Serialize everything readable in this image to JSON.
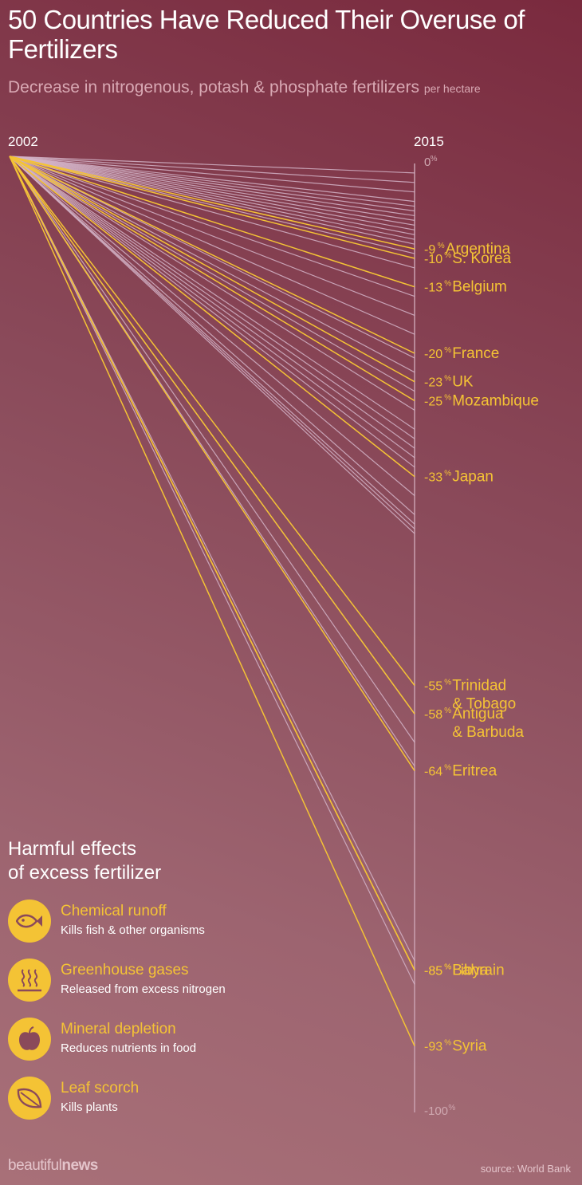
{
  "header": {
    "title": "50 Countries Have Reduced Their Overuse of Fertilizers",
    "subtitle": "Decrease in nitrogenous, potash & phosphate fertilizers",
    "subtitle_small": "per hectare"
  },
  "colors": {
    "highlight": "#f4c335",
    "other_lines": "#d4b4c8",
    "axis": "#c9a0b0",
    "background_top": "#7a2a3e",
    "background_bottom": "#a87078"
  },
  "chart_data": {
    "type": "line",
    "title": "50 Countries Have Reduced Their Overuse of Fertilizers",
    "x": [
      "2002",
      "2015"
    ],
    "y_axis_ticks": [
      {
        "value": 0,
        "label": "0",
        "unit": "%"
      },
      {
        "value": -100,
        "label": "-100",
        "unit": "%"
      }
    ],
    "ylim": [
      -100,
      0
    ],
    "labeled_series": [
      {
        "name": "Argentina",
        "change": -9,
        "label": "-9"
      },
      {
        "name": "S. Korea",
        "change": -10,
        "label": "-10"
      },
      {
        "name": "Belgium",
        "change": -13,
        "label": "-13"
      },
      {
        "name": "France",
        "change": -20,
        "label": "-20"
      },
      {
        "name": "UK",
        "change": -23,
        "label": "-23"
      },
      {
        "name": "Mozambique",
        "change": -25,
        "label": "-25"
      },
      {
        "name": "Japan",
        "change": -33,
        "label": "-33"
      },
      {
        "name": "Trinidad & Tobago",
        "name_lines": [
          "Trinidad",
          "& Tobago"
        ],
        "change": -55,
        "label": "-55"
      },
      {
        "name": "Antigua & Barbuda",
        "name_lines": [
          "Antigua",
          "& Barbuda"
        ],
        "change": -58,
        "label": "-58"
      },
      {
        "name": "Eritrea",
        "change": -64,
        "label": "-64"
      },
      {
        "name": "Libya",
        "change": -85,
        "label": "-85"
      },
      {
        "name": "Bahrain",
        "change": -85,
        "label": "-85"
      },
      {
        "name": "Syria",
        "change": -93,
        "label": "-93"
      }
    ],
    "unlabeled_values": [
      -1,
      -2,
      -3,
      -4,
      -4.5,
      -5,
      -5.5,
      -6,
      -6.5,
      -7,
      -7.5,
      -8,
      -8.5,
      -9.5,
      -11,
      -14,
      -16,
      -18,
      -20.5,
      -22,
      -24,
      -26,
      -28,
      -29,
      -30,
      -31,
      -32,
      -35,
      -37,
      -38,
      -38.5,
      -39,
      -58,
      -61,
      -63.5,
      -84,
      -86.5
    ],
    "percent_symbol": "%"
  },
  "effects": {
    "title_lines": [
      "Harmful effects",
      "of excess fertilizer"
    ],
    "items": [
      {
        "icon": "fish-icon",
        "title": "Chemical runoff",
        "description": "Kills fish & other organisms"
      },
      {
        "icon": "steam-icon",
        "title": "Greenhouse gases",
        "description": "Released from excess nitrogen"
      },
      {
        "icon": "apple-icon",
        "title": "Mineral depletion",
        "description": "Reduces nutrients in food"
      },
      {
        "icon": "leaf-icon",
        "title": "Leaf scorch",
        "description": "Kills plants"
      }
    ]
  },
  "footer": {
    "brand_light": "beautiful",
    "brand_bold": "news",
    "source": "source: World Bank"
  }
}
